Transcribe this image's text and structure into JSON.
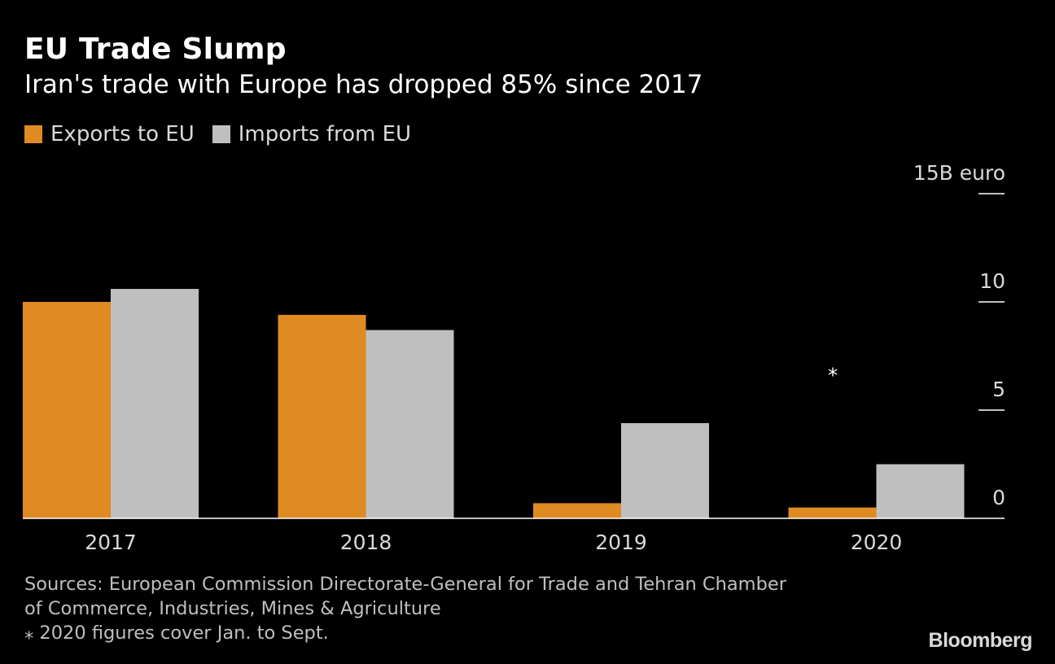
{
  "colors": {
    "exports": "#e08a22",
    "imports": "#bfbfbf",
    "background": "#000000",
    "text": "#ffffff",
    "axis": "#ffffff"
  },
  "header": {
    "title": "EU Trade Slump",
    "subtitle": "Iran's trade with Europe has dropped 85% since 2017"
  },
  "legend": {
    "items": [
      {
        "label": "Exports to EU",
        "color": "#e08a22"
      },
      {
        "label": "Imports from EU",
        "color": "#bfbfbf"
      }
    ]
  },
  "chart_data": {
    "type": "bar",
    "title": "EU Trade Slump",
    "subtitle": "Iran's trade with Europe has dropped 85% since 2017",
    "categories": [
      "2017",
      "2018",
      "2019",
      "2020"
    ],
    "series": [
      {
        "name": "Exports to EU",
        "values": [
          10.0,
          9.4,
          0.7,
          0.5
        ]
      },
      {
        "name": "Imports from EU",
        "values": [
          10.6,
          8.7,
          4.4,
          2.5
        ]
      }
    ],
    "ylim": [
      0,
      15
    ],
    "yticks": [
      0,
      5,
      10,
      15
    ],
    "ytick_labels": [
      "0",
      "5",
      "10",
      "15B euro"
    ],
    "yaxis_position": "right",
    "xlabel": "",
    "ylabel": "",
    "annotation": {
      "text": "⁎",
      "category": "2020"
    }
  },
  "footer": {
    "source_line1": "Sources: European Commission Directorate-General for Trade and Tehran Chamber",
    "source_line2": "of Commerce, Industries, Mines & Agriculture",
    "note": "⁎ 2020 figures cover Jan. to Sept.",
    "brand": "Bloomberg"
  }
}
